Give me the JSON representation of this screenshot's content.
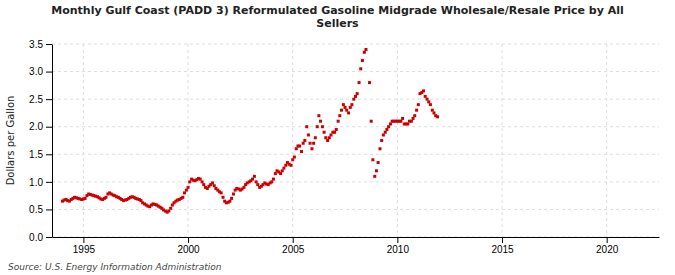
{
  "chart_data": {
    "type": "scatter",
    "title": "Monthly Gulf Coast (PADD 3) Reformulated Gasoline Midgrade Wholesale/Resale Price by All\nSellers",
    "ylabel": "Dollars per Gallon",
    "source": "Source: U.S. Energy Information Administration",
    "color": "#CC0000",
    "marker": "square",
    "grid": true,
    "xlim": [
      1993.5,
      2022.5
    ],
    "ylim": [
      0.0,
      3.5
    ],
    "xticks": [
      1995,
      2000,
      2005,
      2010,
      2015,
      2020
    ],
    "yticks": [
      {
        "value": 0.0,
        "label": "0.0"
      },
      0.5,
      {
        "value": 1.0,
        "label": "1.0"
      },
      1.5,
      {
        "value": 2.0,
        "label": "2.0"
      },
      2.5,
      {
        "value": 3.0,
        "label": "3.0"
      },
      3.5
    ],
    "x": [
      1994.0,
      1994.08,
      1994.17,
      1994.25,
      1994.33,
      1994.42,
      1994.5,
      1994.58,
      1994.67,
      1994.75,
      1994.83,
      1994.92,
      1995.0,
      1995.08,
      1995.17,
      1995.25,
      1995.33,
      1995.42,
      1995.5,
      1995.58,
      1995.67,
      1995.75,
      1995.83,
      1995.92,
      1996.0,
      1996.08,
      1996.17,
      1996.25,
      1996.33,
      1996.42,
      1996.5,
      1996.58,
      1996.67,
      1996.75,
      1996.83,
      1996.92,
      1997.0,
      1997.08,
      1997.17,
      1997.25,
      1997.33,
      1997.42,
      1997.5,
      1997.58,
      1997.67,
      1997.75,
      1997.83,
      1997.92,
      1998.0,
      1998.08,
      1998.17,
      1998.25,
      1998.33,
      1998.42,
      1998.5,
      1998.58,
      1998.67,
      1998.75,
      1998.83,
      1998.92,
      1999.0,
      1999.08,
      1999.17,
      1999.25,
      1999.33,
      1999.42,
      1999.5,
      1999.58,
      1999.67,
      1999.75,
      1999.83,
      1999.92,
      2000.0,
      2000.08,
      2000.17,
      2000.25,
      2000.33,
      2000.42,
      2000.5,
      2000.58,
      2000.67,
      2000.75,
      2000.83,
      2000.92,
      2001.0,
      2001.08,
      2001.17,
      2001.25,
      2001.33,
      2001.42,
      2001.5,
      2001.58,
      2001.67,
      2001.75,
      2001.83,
      2001.92,
      2002.0,
      2002.08,
      2002.17,
      2002.25,
      2002.33,
      2002.42,
      2002.5,
      2002.58,
      2002.67,
      2002.75,
      2002.83,
      2002.92,
      2003.0,
      2003.08,
      2003.17,
      2003.25,
      2003.33,
      2003.42,
      2003.5,
      2003.58,
      2003.67,
      2003.75,
      2003.83,
      2003.92,
      2004.0,
      2004.08,
      2004.17,
      2004.25,
      2004.33,
      2004.42,
      2004.5,
      2004.58,
      2004.67,
      2004.75,
      2004.83,
      2004.92,
      2005.0,
      2005.08,
      2005.17,
      2005.25,
      2005.33,
      2005.42,
      2005.5,
      2005.58,
      2005.67,
      2005.75,
      2005.83,
      2005.92,
      2006.0,
      2006.08,
      2006.17,
      2006.25,
      2006.33,
      2006.42,
      2006.5,
      2006.58,
      2006.67,
      2006.75,
      2006.83,
      2006.92,
      2007.0,
      2007.08,
      2007.17,
      2007.25,
      2007.33,
      2007.42,
      2007.5,
      2007.58,
      2007.67,
      2007.75,
      2007.83,
      2007.92,
      2008.0,
      2008.08,
      2008.17,
      2008.25,
      2008.33,
      2008.42,
      2008.5,
      2008.67,
      2008.75,
      2008.83,
      2008.92,
      2009.0,
      2009.08,
      2009.17,
      2009.25,
      2009.33,
      2009.42,
      2009.5,
      2009.58,
      2009.67,
      2009.75,
      2009.83,
      2009.92,
      2010.0,
      2010.08,
      2010.17,
      2010.25,
      2010.33,
      2010.42,
      2010.5,
      2010.58,
      2010.67,
      2010.75,
      2010.83,
      2010.92,
      2011.0,
      2011.08,
      2011.17,
      2011.25,
      2011.33,
      2011.42,
      2011.5,
      2011.58,
      2011.67,
      2011.75,
      2011.83,
      2011.92
    ],
    "values": [
      0.65,
      0.67,
      0.68,
      0.66,
      0.65,
      0.68,
      0.7,
      0.72,
      0.71,
      0.7,
      0.69,
      0.68,
      0.69,
      0.7,
      0.75,
      0.78,
      0.77,
      0.76,
      0.75,
      0.74,
      0.73,
      0.71,
      0.69,
      0.68,
      0.7,
      0.72,
      0.78,
      0.8,
      0.78,
      0.76,
      0.75,
      0.73,
      0.72,
      0.7,
      0.68,
      0.66,
      0.67,
      0.68,
      0.7,
      0.72,
      0.73,
      0.72,
      0.7,
      0.69,
      0.68,
      0.66,
      0.62,
      0.6,
      0.58,
      0.56,
      0.55,
      0.58,
      0.6,
      0.59,
      0.58,
      0.56,
      0.54,
      0.52,
      0.49,
      0.47,
      0.45,
      0.47,
      0.52,
      0.58,
      0.62,
      0.65,
      0.67,
      0.68,
      0.7,
      0.72,
      0.8,
      0.85,
      0.9,
      1.0,
      1.05,
      1.03,
      1.02,
      1.04,
      1.06,
      1.05,
      1.0,
      0.95,
      0.9,
      0.88,
      0.92,
      0.95,
      0.98,
      0.93,
      0.88,
      0.85,
      0.82,
      0.8,
      0.72,
      0.65,
      0.62,
      0.63,
      0.65,
      0.7,
      0.78,
      0.85,
      0.88,
      0.87,
      0.85,
      0.87,
      0.9,
      0.95,
      0.98,
      1.0,
      1.02,
      1.05,
      1.1,
      1.0,
      0.95,
      0.9,
      0.92,
      0.95,
      0.98,
      0.96,
      0.95,
      0.98,
      1.0,
      1.05,
      1.15,
      1.2,
      1.18,
      1.15,
      1.2,
      1.25,
      1.3,
      1.35,
      1.32,
      1.3,
      1.4,
      1.45,
      1.6,
      1.65,
      1.65,
      1.55,
      1.7,
      1.75,
      2.0,
      1.85,
      1.7,
      1.6,
      1.7,
      1.8,
      2.0,
      2.2,
      2.1,
      2.0,
      1.9,
      1.8,
      1.75,
      1.8,
      1.85,
      1.9,
      1.9,
      1.95,
      2.1,
      2.2,
      2.3,
      2.4,
      2.35,
      2.3,
      2.25,
      2.35,
      2.4,
      2.5,
      2.55,
      2.6,
      2.8,
      3.05,
      3.2,
      3.35,
      3.4,
      2.8,
      2.1,
      1.4,
      1.1,
      1.2,
      1.35,
      1.6,
      1.75,
      1.85,
      1.9,
      1.95,
      2.0,
      2.05,
      2.1,
      2.1,
      2.1,
      2.1,
      2.1,
      2.1,
      2.15,
      2.05,
      2.05,
      2.05,
      2.1,
      2.1,
      2.15,
      2.2,
      2.3,
      2.4,
      2.6,
      2.62,
      2.65,
      2.55,
      2.5,
      2.45,
      2.4,
      2.3,
      2.25,
      2.2,
      2.18
    ]
  }
}
